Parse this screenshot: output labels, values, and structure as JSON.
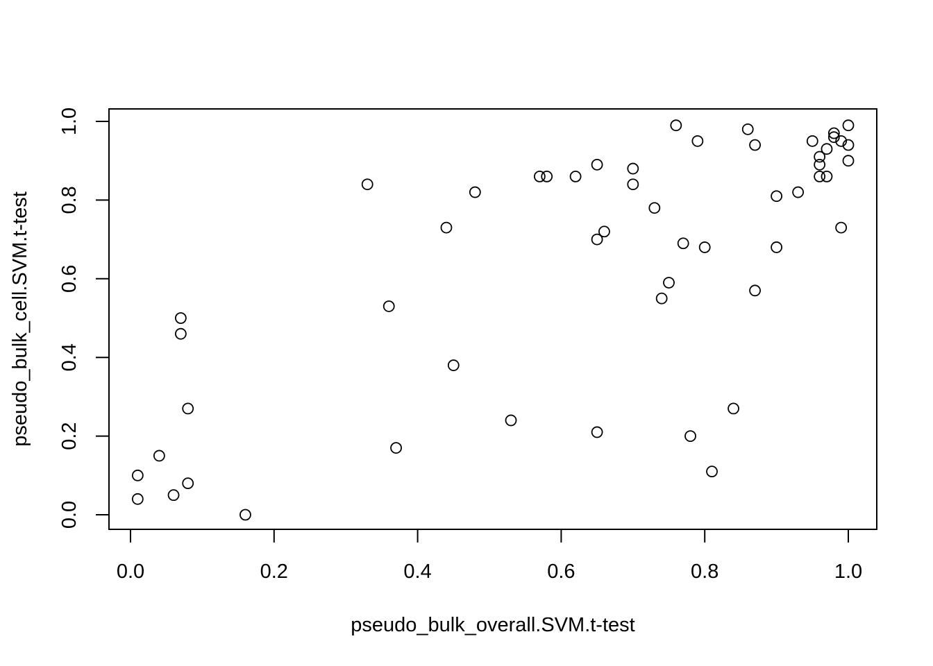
{
  "chart_data": {
    "type": "scatter",
    "title": "",
    "xlabel": "pseudo_bulk_overall.SVM.t-test",
    "ylabel": "pseudo_bulk_cell.SVM.t-test",
    "xlim": [
      0,
      1
    ],
    "ylim": [
      0,
      1
    ],
    "grid": false,
    "legend": "none",
    "marker": "open-circle",
    "colors": {
      "marker": "#000000",
      "axis": "#000000",
      "background": "#ffffff"
    },
    "x_ticks": [
      "0.0",
      "0.2",
      "0.4",
      "0.6",
      "0.8",
      "1.0"
    ],
    "y_ticks": [
      "0.0",
      "0.2",
      "0.4",
      "0.6",
      "0.8",
      "1.0"
    ],
    "points": [
      {
        "x": 0.01,
        "y": 0.1
      },
      {
        "x": 0.01,
        "y": 0.04
      },
      {
        "x": 0.04,
        "y": 0.15
      },
      {
        "x": 0.06,
        "y": 0.05
      },
      {
        "x": 0.07,
        "y": 0.5
      },
      {
        "x": 0.07,
        "y": 0.46
      },
      {
        "x": 0.08,
        "y": 0.27
      },
      {
        "x": 0.08,
        "y": 0.08
      },
      {
        "x": 0.16,
        "y": 0.0
      },
      {
        "x": 0.33,
        "y": 0.84
      },
      {
        "x": 0.36,
        "y": 0.53
      },
      {
        "x": 0.37,
        "y": 0.17
      },
      {
        "x": 0.44,
        "y": 0.73
      },
      {
        "x": 0.45,
        "y": 0.38
      },
      {
        "x": 0.48,
        "y": 0.82
      },
      {
        "x": 0.53,
        "y": 0.24
      },
      {
        "x": 0.57,
        "y": 0.86
      },
      {
        "x": 0.58,
        "y": 0.86
      },
      {
        "x": 0.62,
        "y": 0.86
      },
      {
        "x": 0.65,
        "y": 0.89
      },
      {
        "x": 0.65,
        "y": 0.7
      },
      {
        "x": 0.65,
        "y": 0.21
      },
      {
        "x": 0.66,
        "y": 0.72
      },
      {
        "x": 0.7,
        "y": 0.88
      },
      {
        "x": 0.7,
        "y": 0.84
      },
      {
        "x": 0.73,
        "y": 0.78
      },
      {
        "x": 0.74,
        "y": 0.55
      },
      {
        "x": 0.75,
        "y": 0.59
      },
      {
        "x": 0.76,
        "y": 0.99
      },
      {
        "x": 0.77,
        "y": 0.69
      },
      {
        "x": 0.78,
        "y": 0.2
      },
      {
        "x": 0.79,
        "y": 0.95
      },
      {
        "x": 0.8,
        "y": 0.68
      },
      {
        "x": 0.81,
        "y": 0.11
      },
      {
        "x": 0.84,
        "y": 0.27
      },
      {
        "x": 0.86,
        "y": 0.98
      },
      {
        "x": 0.87,
        "y": 0.94
      },
      {
        "x": 0.87,
        "y": 0.57
      },
      {
        "x": 0.9,
        "y": 0.81
      },
      {
        "x": 0.9,
        "y": 0.68
      },
      {
        "x": 0.93,
        "y": 0.82
      },
      {
        "x": 0.95,
        "y": 0.95
      },
      {
        "x": 0.96,
        "y": 0.91
      },
      {
        "x": 0.96,
        "y": 0.89
      },
      {
        "x": 0.96,
        "y": 0.86
      },
      {
        "x": 0.97,
        "y": 0.93
      },
      {
        "x": 0.97,
        "y": 0.86
      },
      {
        "x": 0.98,
        "y": 0.97
      },
      {
        "x": 0.98,
        "y": 0.96
      },
      {
        "x": 0.99,
        "y": 0.95
      },
      {
        "x": 0.99,
        "y": 0.73
      },
      {
        "x": 1.0,
        "y": 0.99
      },
      {
        "x": 1.0,
        "y": 0.94
      },
      {
        "x": 1.0,
        "y": 0.9
      }
    ]
  }
}
